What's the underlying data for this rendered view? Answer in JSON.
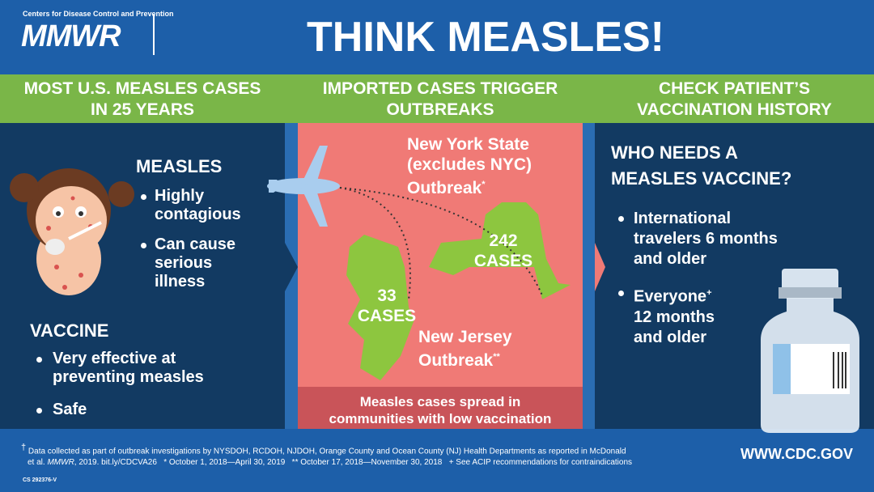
{
  "header": {
    "org": "Centers for Disease Control and Prevention",
    "logo": "MMWR",
    "title": "THINK MEASLES!"
  },
  "columns": [
    {
      "heading": [
        "MOST U.S. MEASLES CASES",
        "IN 25 YEARS"
      ],
      "measles": {
        "heading": "MEASLES",
        "bullets": [
          [
            "Highly",
            "contagious"
          ],
          [
            "Can cause",
            "serious",
            "illness"
          ]
        ]
      },
      "vaccine": {
        "heading": "VACCINE",
        "bullets": [
          [
            "Very effective at",
            "preventing measles"
          ],
          [
            "Safe"
          ]
        ]
      }
    },
    {
      "heading": [
        "IMPORTED CASES TRIGGER",
        "OUTBREAKS"
      ],
      "ny": {
        "label": [
          "New York State",
          "(excludes NYC)",
          "Outbreak"
        ],
        "mark": "*",
        "count": 242,
        "unit": "CASES"
      },
      "nj": {
        "label": [
          "New Jersey",
          "Outbreak"
        ],
        "mark": "**",
        "count": 33,
        "unit": "CASES"
      },
      "footer": [
        "Measles cases spread in",
        "communities with low vaccination"
      ]
    },
    {
      "heading": [
        "CHECK PATIENT’S",
        "VACCINATION HISTORY"
      ],
      "question": [
        "WHO NEEDS A",
        "MEASLES VACCINE?"
      ],
      "bullets": [
        {
          "lines": [
            "International",
            "travelers 6 months",
            "and older"
          ]
        },
        {
          "lines": [
            "Everyone",
            "12 months",
            "and older"
          ],
          "mark": "+"
        }
      ]
    }
  ],
  "footer": {
    "symbol": "†",
    "note1": "Data collected as part of outbreak investigations by NYSDOH, RCDOH, NJDOH, Orange County and Ocean County (NJ) Health Departments as reported in McDonald",
    "note2": "et al.",
    "journal": "MMWR",
    "note3": ", 2019.  bit.ly/CDCVA26",
    "dates": [
      "* October 1, 2018—April 30, 2019",
      "** October 17, 2018—November 30, 2018",
      "+ See ACIP recommendations for contraindications"
    ],
    "url": "WWW.CDC.GOV",
    "code": "CS 292376-V"
  }
}
